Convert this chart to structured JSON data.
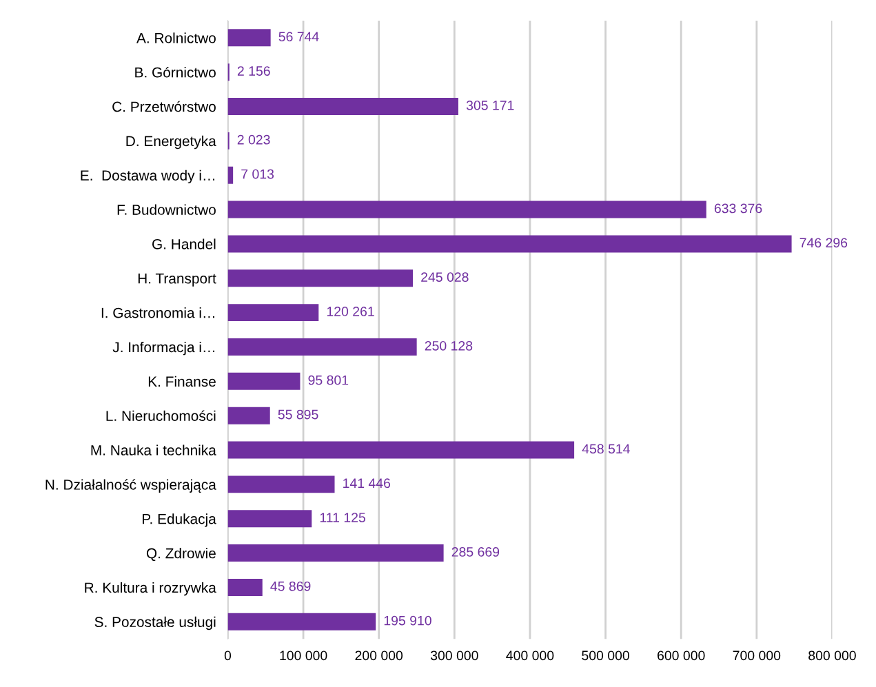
{
  "chart_data": {
    "type": "bar",
    "orientation": "horizontal",
    "categories": [
      "A. Rolnictwo",
      "B. Górnictwo",
      "C. Przetwórstwo",
      "D. Energetyka",
      "E.  Dostawa wody i…",
      "F. Budownictwo",
      "G. Handel",
      "H. Transport",
      "I. Gastronomia i…",
      "J. Informacja i…",
      "K. Finanse",
      "L. Nieruchomości",
      "M. Nauka i technika",
      "N. Działalność wspierająca",
      "P. Edukacja",
      "Q. Zdrowie",
      "R. Kultura i rozrywka",
      "S. Pozostałe usługi"
    ],
    "values": [
      56744,
      2156,
      305171,
      2023,
      7013,
      633376,
      746296,
      245028,
      120261,
      250128,
      95801,
      55895,
      458514,
      141446,
      111125,
      285669,
      45869,
      195910
    ],
    "value_labels": [
      "56 744",
      "2 156",
      "305 171",
      "2 023",
      "7 013",
      "633 376",
      "746 296",
      "245 028",
      "120 261",
      "250 128",
      "95 801",
      "55 895",
      "458 514",
      "141 446",
      "111 125",
      "285 669",
      "45 869",
      "195 910"
    ],
    "color": "#7030a0",
    "xlim": [
      0,
      800000
    ],
    "xticks": [
      0,
      {
        "value": 100000,
        "label": "100 000"
      },
      {
        "value": 200000,
        "label": "200 000"
      },
      {
        "value": 300000,
        "label": "300 000"
      },
      {
        "value": 400000,
        "label": "400 000"
      },
      {
        "value": 500000,
        "label": "500 000"
      },
      {
        "value": 600000,
        "label": "600 000"
      },
      {
        "value": 700000,
        "label": "700 000"
      },
      {
        "value": 800000,
        "label": "800 000"
      }
    ],
    "grid": "x"
  }
}
